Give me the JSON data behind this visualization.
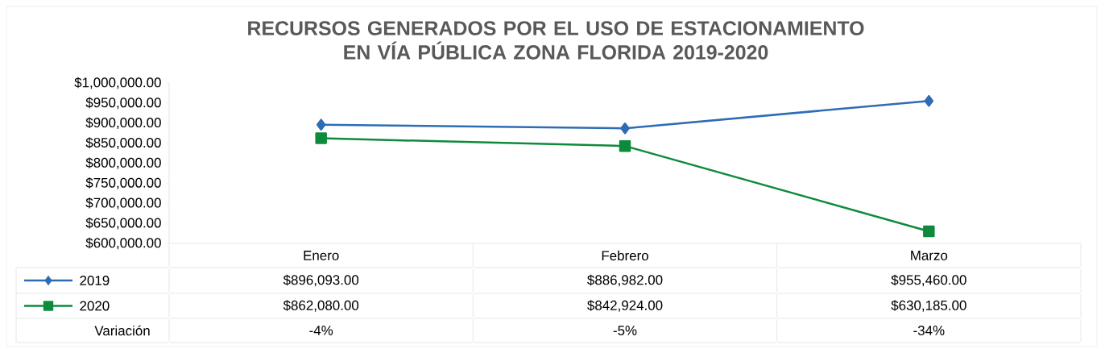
{
  "chart_data": {
    "type": "line",
    "title": "RECURSOS GENERADOS POR EL USO DE ESTACIONAMIENTO EN VÍA PÚBLICA ZONA FLORIDA 2019-2020",
    "categories": [
      "Enero",
      "Febrero",
      "Marzo"
    ],
    "series": [
      {
        "name": "2019",
        "color": "#2e6db4",
        "marker": "diamond",
        "values": [
          896093,
          886982,
          955460
        ],
        "value_labels": [
          "$896,093.00",
          "$886,982.00",
          "$955,460.00"
        ]
      },
      {
        "name": "2020",
        "color": "#0e8a3c",
        "marker": "square",
        "values": [
          862080,
          842924,
          630185
        ],
        "value_labels": [
          "$862,080.00",
          "$842,924.00",
          "$630,185.00"
        ]
      }
    ],
    "ylim": [
      600000,
      1000000
    ],
    "yticks": [
      {
        "value": 600000,
        "label": "$600,000.00"
      },
      {
        "value": 650000,
        "label": "$650,000.00"
      },
      {
        "value": 700000,
        "label": "$700,000.00"
      },
      {
        "value": 750000,
        "label": "$750,000.00"
      },
      {
        "value": 800000,
        "label": "$800,000.00"
      },
      {
        "value": 850000,
        "label": "$850,000.00"
      },
      {
        "value": 900000,
        "label": "$900,000.00"
      },
      {
        "value": 950000,
        "label": "$950,000.00"
      },
      {
        "value": 1000000,
        "label": "$1,000,000.00"
      }
    ],
    "legend": "bottom left",
    "annotations": [
      "Variación",
      "-4%",
      "-5%",
      "-34%"
    ]
  }
}
